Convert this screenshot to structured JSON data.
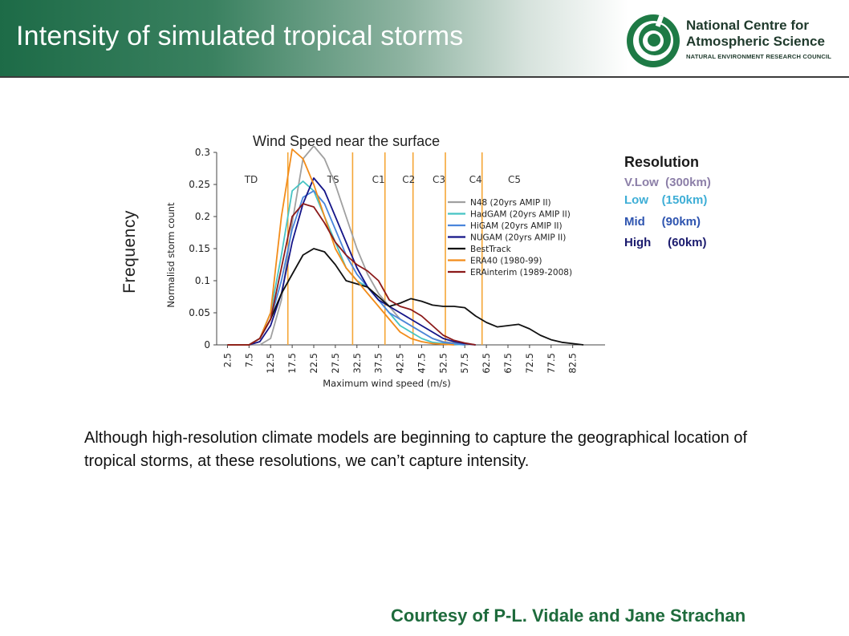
{
  "header": {
    "title": "Intensity of simulated tropical storms",
    "logo": {
      "line1": "National Centre for",
      "line2": "Atmospheric Science",
      "line3": "NATURAL ENVIRONMENT RESEARCH COUNCIL",
      "icon": "ncas-swirl-logo"
    }
  },
  "chart_title": "Wind Speed near the surface",
  "frequency_label": "Frequency",
  "resolution_legend": {
    "title": "Resolution",
    "rows": [
      {
        "label": "V.Low  (300km)",
        "color": "#8c7fa8"
      },
      {
        "label": "Low    (150km)",
        "color": "#3eaed6"
      },
      {
        "label": "Mid     (90km)",
        "color": "#2f55b0"
      },
      {
        "label": "High     (60km)",
        "color": "#1b1b6e"
      }
    ]
  },
  "body_text": "Although high-resolution climate models are beginning to capture the geographical location of tropical storms, at these resolutions, we can’t capture intensity.",
  "credit": "Courtesy of P-L. Vidale and Jane Strachan",
  "chart_data": {
    "type": "line",
    "xlabel": "Maximum wind speed (m/s)",
    "ylabel": "Normalisd storm count",
    "xlim": [
      0,
      90
    ],
    "ylim": [
      0,
      0.3
    ],
    "x_ticks": [
      "2.5",
      "7.5",
      "12.5",
      "17.5",
      "22.5",
      "27.5",
      "32.5",
      "37.5",
      "42.5",
      "47.5",
      "52.5",
      "57.5",
      "62.5",
      "67.5",
      "72.5",
      "77.5",
      "82.5"
    ],
    "y_ticks": [
      "0",
      "0.05",
      "0.1",
      "0.15",
      "0.2",
      "0.25",
      "0.3"
    ],
    "categories": [
      {
        "label": "TD",
        "x": 8
      },
      {
        "label": "TS",
        "x": 27
      },
      {
        "label": "C1",
        "x": 37.5
      },
      {
        "label": "C2",
        "x": 44.5
      },
      {
        "label": "C3",
        "x": 51.5
      },
      {
        "label": "C4",
        "x": 60
      },
      {
        "label": "C5",
        "x": 69
      }
    ],
    "thresholds": [
      16.5,
      31.5,
      39,
      45.5,
      53,
      61.5
    ],
    "threshold_color": "#f5a637",
    "legend_position": "right",
    "series": [
      {
        "name": "N48 (20yrs AMIP II)",
        "color": "#a0a0a0",
        "x": [
          2.5,
          7.5,
          10,
          12.5,
          15,
          17.5,
          20,
          22.5,
          25,
          27.5,
          30,
          32.5,
          35,
          37.5,
          40,
          42.5,
          45,
          47.5,
          50,
          52.5,
          55,
          57.5,
          60
        ],
        "y": [
          0,
          0,
          0,
          0.01,
          0.07,
          0.19,
          0.29,
          0.31,
          0.29,
          0.25,
          0.2,
          0.15,
          0.11,
          0.08,
          0.06,
          0.04,
          0.03,
          0.02,
          0.01,
          0.005,
          0.003,
          0.001,
          0
        ]
      },
      {
        "name": "HadGAM (20yrs AMIP II)",
        "color": "#46c4c4",
        "x": [
          2.5,
          7.5,
          10,
          12.5,
          15,
          17.5,
          20,
          22.5,
          25,
          27.5,
          30,
          32.5,
          35,
          37.5,
          40,
          42.5,
          45,
          47.5,
          50,
          52.5,
          55,
          57.5
        ],
        "y": [
          0,
          0,
          0.01,
          0.05,
          0.14,
          0.24,
          0.255,
          0.24,
          0.2,
          0.16,
          0.12,
          0.1,
          0.09,
          0.07,
          0.05,
          0.03,
          0.02,
          0.01,
          0.004,
          0.002,
          0.001,
          0
        ]
      },
      {
        "name": "HiGAM (20yrs AMIP II)",
        "color": "#4a86dc",
        "x": [
          2.5,
          7.5,
          10,
          12.5,
          15,
          17.5,
          20,
          22.5,
          25,
          27.5,
          30,
          32.5,
          35,
          37.5,
          40,
          42.5,
          45,
          47.5,
          50,
          52.5,
          55,
          57.5
        ],
        "y": [
          0,
          0,
          0.01,
          0.04,
          0.1,
          0.18,
          0.23,
          0.24,
          0.22,
          0.18,
          0.14,
          0.11,
          0.09,
          0.07,
          0.05,
          0.04,
          0.03,
          0.02,
          0.01,
          0.004,
          0.002,
          0
        ]
      },
      {
        "name": "NUGAM (20yrs AMIP II)",
        "color": "#141488",
        "x": [
          2.5,
          7.5,
          10,
          12.5,
          15,
          17.5,
          20,
          22.5,
          25,
          27.5,
          30,
          32.5,
          35,
          37.5,
          40,
          42.5,
          45,
          47.5,
          50,
          52.5,
          55,
          57.5,
          60
        ],
        "y": [
          0,
          0,
          0.005,
          0.03,
          0.08,
          0.16,
          0.22,
          0.26,
          0.24,
          0.2,
          0.16,
          0.12,
          0.09,
          0.07,
          0.06,
          0.05,
          0.04,
          0.03,
          0.02,
          0.01,
          0.005,
          0.002,
          0
        ]
      },
      {
        "name": "BestTrack",
        "color": "#111111",
        "x": [
          2.5,
          5,
          7.5,
          10,
          12.5,
          15,
          17.5,
          20,
          22.5,
          25,
          27.5,
          30,
          32.5,
          35,
          37.5,
          40,
          42.5,
          45,
          47.5,
          50,
          52.5,
          55,
          57.5,
          60,
          62.5,
          65,
          67.5,
          70,
          72.5,
          75,
          77.5,
          80,
          82.5,
          85
        ],
        "y": [
          0,
          0,
          0,
          0.01,
          0.04,
          0.08,
          0.11,
          0.14,
          0.15,
          0.145,
          0.125,
          0.1,
          0.095,
          0.09,
          0.075,
          0.06,
          0.065,
          0.072,
          0.068,
          0.062,
          0.06,
          0.06,
          0.058,
          0.045,
          0.035,
          0.028,
          0.03,
          0.032,
          0.025,
          0.015,
          0.008,
          0.004,
          0.002,
          0
        ]
      },
      {
        "name": "ERA40 (1980-99)",
        "color": "#f28c1a",
        "x": [
          2.5,
          7.5,
          10,
          12.5,
          15,
          17.5,
          20,
          22.5,
          25,
          27.5,
          30,
          32.5,
          35,
          37.5,
          40,
          42.5,
          45,
          47.5,
          50,
          52.5,
          55
        ],
        "y": [
          0,
          0,
          0.01,
          0.05,
          0.2,
          0.305,
          0.29,
          0.25,
          0.2,
          0.15,
          0.12,
          0.1,
          0.08,
          0.06,
          0.04,
          0.02,
          0.01,
          0.005,
          0.002,
          0.001,
          0
        ]
      },
      {
        "name": "ERAinterim (1989-2008)",
        "color": "#8b1a1a",
        "x": [
          2.5,
          7.5,
          10,
          12.5,
          15,
          17.5,
          20,
          22.5,
          25,
          27.5,
          30,
          32.5,
          35,
          37.5,
          40,
          42.5,
          45,
          47.5,
          50,
          52.5,
          55,
          57.5,
          60
        ],
        "y": [
          0,
          0,
          0.01,
          0.04,
          0.12,
          0.2,
          0.22,
          0.215,
          0.19,
          0.16,
          0.14,
          0.125,
          0.115,
          0.1,
          0.07,
          0.06,
          0.055,
          0.045,
          0.03,
          0.015,
          0.007,
          0.003,
          0
        ]
      }
    ]
  }
}
